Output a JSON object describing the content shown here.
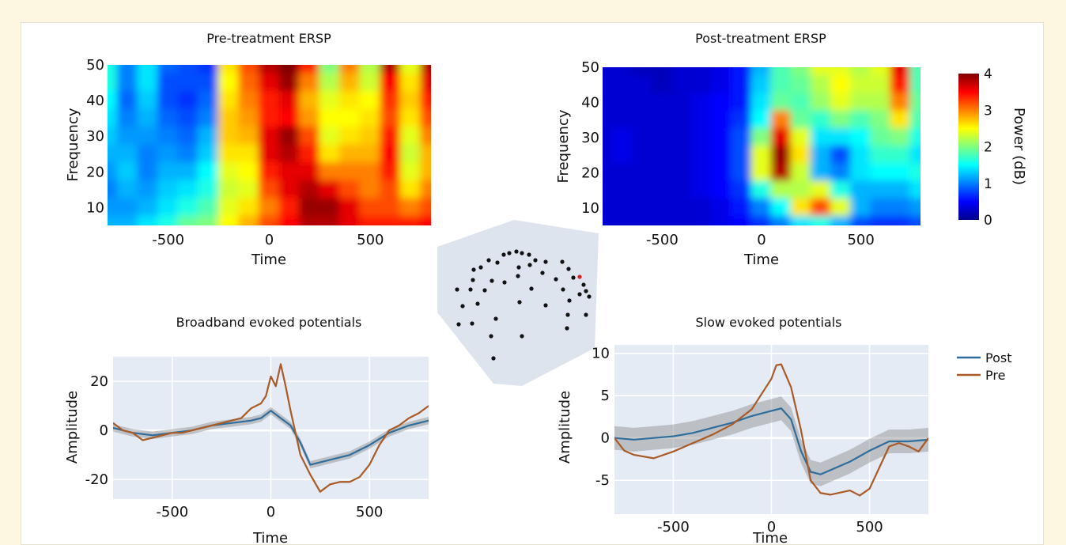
{
  "colors": {
    "background": "#fdf7e2",
    "panel": "#ffffff",
    "plot_bg": "#e4ebf5",
    "post": "#2f6d9c",
    "pre": "#a95a26",
    "band": "#8c8c8c",
    "electrode": "#111111",
    "electrode_selected": "#e0201c"
  },
  "chart_data": [
    {
      "type": "heatmap",
      "title": "Pre-treatment ERSP",
      "xlabel": "Time",
      "ylabel": "Frequency",
      "xlim": [
        -800,
        800
      ],
      "ylim": [
        5,
        50
      ],
      "xticks": [
        -500,
        0,
        500
      ],
      "yticks": [
        10,
        20,
        30,
        40,
        50
      ],
      "colorscale": "jet",
      "zlim": [
        0,
        4
      ],
      "time_points": [
        -800,
        -700,
        -600,
        -500,
        -400,
        -300,
        -200,
        -100,
        0,
        100,
        200,
        300,
        400,
        500,
        600,
        700,
        800
      ],
      "freq_points": [
        50,
        45,
        40,
        35,
        30,
        25,
        20,
        15,
        10,
        5
      ],
      "power": [
        [
          1.6,
          1.0,
          1.4,
          0.9,
          0.8,
          0.7,
          2.6,
          3.2,
          3.8,
          4.0,
          3.4,
          2.0,
          3.0,
          2.2,
          3.8,
          2.4,
          3.8
        ],
        [
          1.6,
          1.0,
          1.4,
          0.8,
          0.8,
          0.8,
          2.5,
          3.1,
          3.6,
          3.9,
          3.0,
          2.2,
          2.8,
          2.3,
          3.5,
          2.6,
          3.6
        ],
        [
          1.5,
          0.9,
          1.3,
          0.8,
          0.7,
          0.9,
          2.6,
          3.0,
          3.4,
          3.6,
          2.8,
          2.4,
          2.6,
          2.5,
          3.3,
          2.7,
          3.4
        ],
        [
          1.4,
          1.0,
          1.2,
          0.9,
          0.8,
          1.0,
          2.7,
          2.9,
          3.4,
          3.5,
          2.9,
          2.5,
          2.5,
          2.6,
          3.2,
          2.6,
          3.2
        ],
        [
          1.3,
          1.1,
          1.1,
          1.0,
          0.9,
          1.2,
          2.7,
          2.8,
          3.6,
          3.9,
          3.2,
          2.4,
          2.6,
          2.7,
          3.4,
          2.4,
          3.0
        ],
        [
          1.2,
          1.2,
          1.0,
          1.1,
          1.0,
          1.3,
          2.6,
          2.6,
          3.6,
          3.8,
          3.4,
          2.6,
          2.8,
          2.8,
          3.5,
          2.3,
          2.8
        ],
        [
          1.1,
          1.3,
          1.0,
          1.2,
          1.2,
          1.5,
          2.4,
          2.5,
          3.4,
          3.6,
          3.6,
          3.0,
          3.0,
          3.0,
          3.4,
          2.4,
          2.8
        ],
        [
          1.0,
          1.2,
          1.1,
          1.3,
          1.4,
          1.6,
          2.3,
          2.4,
          3.2,
          3.6,
          3.8,
          3.6,
          3.2,
          3.0,
          3.2,
          2.6,
          3.0
        ],
        [
          1.1,
          1.1,
          1.2,
          1.4,
          1.6,
          1.8,
          2.4,
          2.6,
          3.0,
          3.4,
          3.9,
          3.9,
          3.6,
          3.2,
          3.2,
          3.0,
          3.2
        ],
        [
          1.2,
          1.2,
          1.4,
          1.6,
          1.9,
          2.0,
          2.5,
          2.8,
          3.2,
          3.5,
          3.8,
          3.8,
          3.6,
          3.4,
          3.4,
          3.4,
          3.5
        ]
      ]
    },
    {
      "type": "heatmap",
      "title": "Post-treatment ERSP",
      "xlabel": "Time",
      "ylabel": "Frequency",
      "xlim": [
        -800,
        800
      ],
      "ylim": [
        5,
        50
      ],
      "xticks": [
        -500,
        0,
        500
      ],
      "yticks": [
        10,
        20,
        30,
        40,
        50
      ],
      "colorscale": "jet",
      "zlim": [
        0,
        4
      ],
      "colorbar_label": "Power (dB)",
      "colorbar_ticks": [
        0,
        1,
        2,
        3,
        4
      ],
      "time_points": [
        -800,
        -700,
        -600,
        -500,
        -400,
        -300,
        -200,
        -100,
        0,
        100,
        200,
        300,
        400,
        500,
        600,
        700,
        800
      ],
      "freq_points": [
        50,
        45,
        40,
        35,
        30,
        25,
        20,
        15,
        10,
        5
      ],
      "power": [
        [
          0.3,
          0.3,
          0.2,
          0.2,
          0.3,
          0.3,
          0.4,
          0.6,
          1.2,
          1.8,
          2.0,
          2.4,
          2.4,
          2.2,
          2.4,
          3.6,
          1.8
        ],
        [
          0.3,
          0.3,
          0.3,
          0.2,
          0.3,
          0.3,
          0.4,
          0.6,
          1.3,
          1.8,
          1.9,
          2.2,
          2.5,
          2.3,
          2.3,
          3.4,
          1.8
        ],
        [
          0.3,
          0.3,
          0.3,
          0.3,
          0.3,
          0.4,
          0.5,
          0.6,
          1.4,
          1.9,
          1.8,
          2.1,
          2.4,
          2.2,
          2.2,
          3.0,
          1.9
        ],
        [
          0.3,
          0.3,
          0.3,
          0.3,
          0.3,
          0.4,
          0.5,
          0.7,
          1.5,
          3.0,
          1.9,
          1.7,
          2.0,
          1.8,
          2.0,
          2.6,
          1.8
        ],
        [
          0.3,
          0.4,
          0.3,
          0.3,
          0.3,
          0.4,
          0.5,
          0.8,
          2.0,
          3.6,
          2.4,
          1.4,
          1.4,
          1.5,
          1.9,
          2.0,
          1.6
        ],
        [
          0.3,
          0.4,
          0.3,
          0.3,
          0.3,
          0.4,
          0.5,
          0.8,
          2.4,
          3.9,
          2.6,
          1.2,
          0.8,
          1.4,
          1.7,
          1.7,
          1.4
        ],
        [
          0.3,
          0.3,
          0.3,
          0.3,
          0.3,
          0.4,
          0.5,
          0.8,
          2.4,
          3.8,
          2.3,
          1.2,
          1.0,
          1.4,
          1.5,
          1.5,
          1.6
        ],
        [
          0.3,
          0.3,
          0.3,
          0.3,
          0.3,
          0.4,
          0.5,
          0.7,
          1.6,
          2.2,
          2.2,
          2.4,
          1.6,
          1.2,
          1.2,
          1.2,
          1.4
        ],
        [
          0.3,
          0.3,
          0.3,
          0.3,
          0.3,
          0.3,
          0.4,
          0.6,
          1.0,
          1.5,
          2.6,
          3.2,
          2.4,
          1.2,
          1.0,
          1.0,
          1.1
        ],
        [
          0.3,
          0.3,
          0.3,
          0.3,
          0.3,
          0.3,
          0.4,
          0.5,
          0.7,
          1.0,
          1.4,
          1.6,
          1.2,
          0.8,
          0.7,
          0.7,
          0.8
        ]
      ]
    },
    {
      "type": "line",
      "title": "Broadband evoked potentials",
      "xlabel": "Time",
      "ylabel": "Amplitude",
      "xlim": [
        -800,
        800
      ],
      "ylim": [
        -28,
        30
      ],
      "xticks": [
        -500,
        0,
        500
      ],
      "yticks": [
        -20,
        0,
        20
      ],
      "grid": true,
      "series": [
        {
          "key": "post",
          "x": [
            -800,
            -700,
            -600,
            -500,
            -400,
            -300,
            -200,
            -100,
            -50,
            0,
            50,
            100,
            150,
            200,
            250,
            300,
            400,
            500,
            600,
            700,
            800
          ],
          "values": [
            1,
            -1,
            -2,
            -1,
            0,
            2,
            3,
            4,
            5,
            8,
            5,
            2,
            -5,
            -14,
            -13,
            -12,
            -10,
            -6,
            -1,
            2,
            4
          ],
          "band": 1.5
        },
        {
          "key": "pre",
          "x": [
            -800,
            -750,
            -700,
            -650,
            -600,
            -550,
            -500,
            -450,
            -400,
            -350,
            -300,
            -250,
            -200,
            -150,
            -100,
            -50,
            -25,
            0,
            25,
            50,
            75,
            100,
            150,
            200,
            250,
            300,
            350,
            400,
            450,
            500,
            550,
            600,
            650,
            700,
            750,
            800
          ],
          "values": [
            3,
            0,
            -1,
            -4,
            -3,
            -2,
            -1,
            -1,
            0,
            1,
            2,
            3,
            4,
            5,
            9,
            11,
            14,
            22,
            18,
            27,
            18,
            8,
            -10,
            -18,
            -25,
            -22,
            -21,
            -21,
            -19,
            -14,
            -6,
            0,
            2,
            5,
            7,
            10
          ]
        }
      ]
    },
    {
      "type": "line",
      "title": "Slow evoked potentials",
      "xlabel": "Time",
      "ylabel": "Amplitude",
      "xlim": [
        -800,
        800
      ],
      "ylim": [
        -9,
        11
      ],
      "xticks": [
        -500,
        0,
        500
      ],
      "yticks": [
        -5,
        0,
        5,
        10
      ],
      "grid": true,
      "legend": "right",
      "series": [
        {
          "name": "Post",
          "key": "post",
          "x": [
            -800,
            -700,
            -600,
            -500,
            -400,
            -300,
            -200,
            -100,
            0,
            50,
            100,
            150,
            200,
            250,
            300,
            400,
            500,
            600,
            700,
            800
          ],
          "values": [
            0,
            -0.2,
            0,
            0.2,
            0.6,
            1.2,
            1.8,
            2.6,
            3.2,
            3.5,
            2.2,
            -1.5,
            -4.0,
            -4.3,
            -3.8,
            -2.8,
            -1.5,
            -0.4,
            -0.4,
            -0.2
          ],
          "band": 1.4
        },
        {
          "name": "Pre",
          "key": "pre",
          "x": [
            -800,
            -750,
            -700,
            -600,
            -500,
            -400,
            -300,
            -200,
            -100,
            -50,
            0,
            25,
            50,
            100,
            150,
            200,
            250,
            300,
            400,
            450,
            500,
            550,
            600,
            650,
            700,
            750,
            800
          ],
          "values": [
            0,
            -1.5,
            -2.0,
            -2.4,
            -1.6,
            -0.6,
            0.4,
            1.6,
            3.4,
            5.2,
            7.0,
            8.6,
            8.7,
            6.0,
            1.0,
            -5.0,
            -6.5,
            -6.7,
            -6.2,
            -6.8,
            -6.0,
            -3.5,
            -1.0,
            -0.6,
            -1.0,
            -1.6,
            0
          ]
        }
      ]
    }
  ]
}
